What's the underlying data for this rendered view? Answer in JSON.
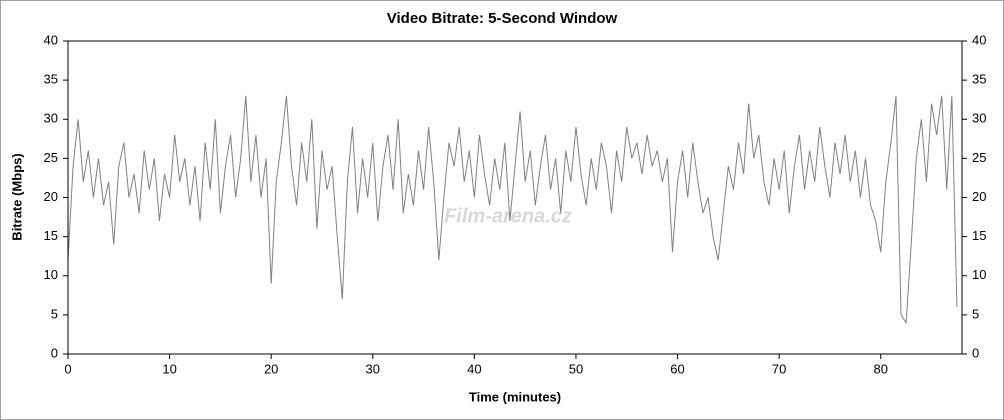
{
  "chart_data": {
    "type": "line",
    "title": "Video Bitrate: 5-Second Window",
    "x_label": "Time (minutes)",
    "y_label": "Bitrate (Mbps)",
    "watermark": "Film-arena.cz",
    "color": "#808080",
    "xlim": [
      0,
      88
    ],
    "xticks": [
      0,
      10,
      20,
      30,
      40,
      50,
      60,
      70,
      80
    ],
    "ylim": [
      0,
      40
    ],
    "yticks": [
      0,
      5,
      10,
      15,
      20,
      25,
      30,
      35,
      40
    ],
    "y2lim": [
      0,
      40
    ],
    "y2ticks": [
      0,
      5,
      10,
      15,
      20,
      25,
      30,
      35,
      40
    ],
    "x": [
      0,
      0.5,
      1,
      1.5,
      2,
      2.5,
      3,
      3.5,
      4,
      4.5,
      5,
      5.5,
      6,
      6.5,
      7,
      7.5,
      8,
      8.5,
      9,
      9.5,
      10,
      10.5,
      11,
      11.5,
      12,
      12.5,
      13,
      13.5,
      14,
      14.5,
      15,
      15.5,
      16,
      16.5,
      17,
      17.5,
      18,
      18.5,
      19,
      19.5,
      20,
      20.5,
      21,
      21.5,
      22,
      22.5,
      23,
      23.5,
      24,
      24.5,
      25,
      25.5,
      26,
      26.5,
      27,
      27.5,
      28,
      28.5,
      29,
      29.5,
      30,
      30.5,
      31,
      31.5,
      32,
      32.5,
      33,
      33.5,
      34,
      34.5,
      35,
      35.5,
      36,
      36.5,
      37,
      37.5,
      38,
      38.5,
      39,
      39.5,
      40,
      40.5,
      41,
      41.5,
      42,
      42.5,
      43,
      43.5,
      44,
      44.5,
      45,
      45.5,
      46,
      46.5,
      47,
      47.5,
      48,
      48.5,
      49,
      49.5,
      50,
      50.5,
      51,
      51.5,
      52,
      52.5,
      53,
      53.5,
      54,
      54.5,
      55,
      55.5,
      56,
      56.5,
      57,
      57.5,
      58,
      58.5,
      59,
      59.5,
      60,
      60.5,
      61,
      61.5,
      62,
      62.5,
      63,
      63.5,
      64,
      64.5,
      65,
      65.5,
      66,
      66.5,
      67,
      67.5,
      68,
      68.5,
      69,
      69.5,
      70,
      70.5,
      71,
      71.5,
      72,
      72.5,
      73,
      73.5,
      74,
      74.5,
      75,
      75.5,
      76,
      76.5,
      77,
      77.5,
      78,
      78.5,
      79,
      79.5,
      80,
      80.5,
      81,
      81.5,
      82,
      82.5,
      83,
      83.5,
      84,
      84.5,
      85,
      85.5,
      86,
      86.5,
      87,
      87.5
    ],
    "values": [
      12,
      24,
      30,
      22,
      26,
      20,
      25,
      19,
      22,
      14,
      24,
      27,
      20,
      23,
      18,
      26,
      21,
      25,
      17,
      23,
      20,
      28,
      22,
      25,
      19,
      24,
      17,
      27,
      21,
      30,
      18,
      24,
      28,
      20,
      25,
      33,
      22,
      28,
      20,
      25,
      9,
      22,
      27,
      33,
      24,
      19,
      27,
      22,
      30,
      16,
      26,
      21,
      24,
      15,
      7,
      22,
      29,
      18,
      25,
      20,
      27,
      17,
      24,
      28,
      21,
      30,
      18,
      23,
      19,
      26,
      21,
      29,
      22,
      12,
      20,
      27,
      24,
      29,
      22,
      26,
      20,
      28,
      23,
      19,
      25,
      21,
      27,
      17,
      24,
      31,
      22,
      26,
      19,
      24,
      28,
      21,
      25,
      18,
      26,
      22,
      29,
      23,
      19,
      25,
      21,
      27,
      24,
      18,
      26,
      22,
      29,
      25,
      27,
      23,
      28,
      24,
      26,
      22,
      25,
      13,
      22,
      26,
      20,
      27,
      22,
      18,
      20,
      15,
      12,
      18,
      24,
      21,
      27,
      23,
      32,
      25,
      28,
      22,
      19,
      25,
      21,
      26,
      18,
      24,
      28,
      21,
      26,
      22,
      29,
      24,
      20,
      27,
      23,
      28,
      22,
      26,
      20,
      25,
      19,
      17,
      13,
      22,
      27,
      33,
      5,
      4,
      14,
      25,
      30,
      22,
      32,
      28,
      33,
      21,
      33,
      6
    ]
  }
}
